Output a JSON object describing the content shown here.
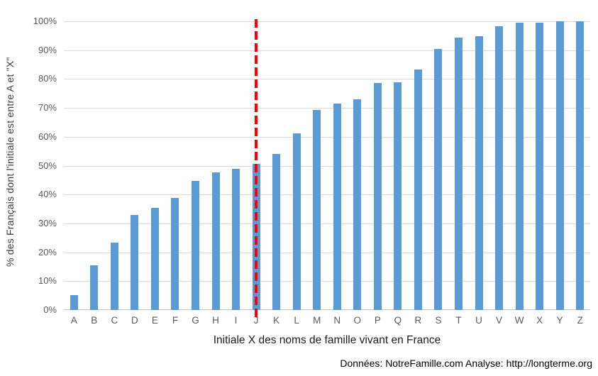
{
  "chart_data": {
    "type": "bar",
    "title": "",
    "categories": [
      "A",
      "B",
      "C",
      "D",
      "E",
      "F",
      "G",
      "H",
      "I",
      "J",
      "K",
      "L",
      "M",
      "N",
      "O",
      "P",
      "Q",
      "R",
      "S",
      "T",
      "U",
      "V",
      "W",
      "X",
      "Y",
      "Z"
    ],
    "values": [
      5.2,
      15.5,
      23.4,
      33.0,
      35.3,
      38.8,
      44.8,
      47.7,
      48.9,
      50.6,
      54.0,
      61.2,
      69.2,
      71.5,
      72.9,
      78.7,
      78.9,
      83.4,
      90.5,
      94.4,
      94.8,
      98.3,
      99.5,
      99.5,
      99.9,
      100.0
    ],
    "xlabel": "Initiale X des noms de famille vivant en France",
    "ylabel": "% des Français dont l'initiale est entre A et \"X\"",
    "ylim": [
      0,
      100
    ],
    "ytick_labels": [
      "0%",
      "10%",
      "20%",
      "30%",
      "40%",
      "50%",
      "60%",
      "70%",
      "80%",
      "90%",
      "100%"
    ],
    "grid": true,
    "legend": "none",
    "bar_color": "#5B9BD5",
    "annotation": {
      "type": "vline",
      "at_category": "J",
      "color": "#FF0000",
      "style": "dashed"
    }
  },
  "footer": {
    "text": "Données: NotreFamille.com Analyse: http://longterme.org"
  }
}
